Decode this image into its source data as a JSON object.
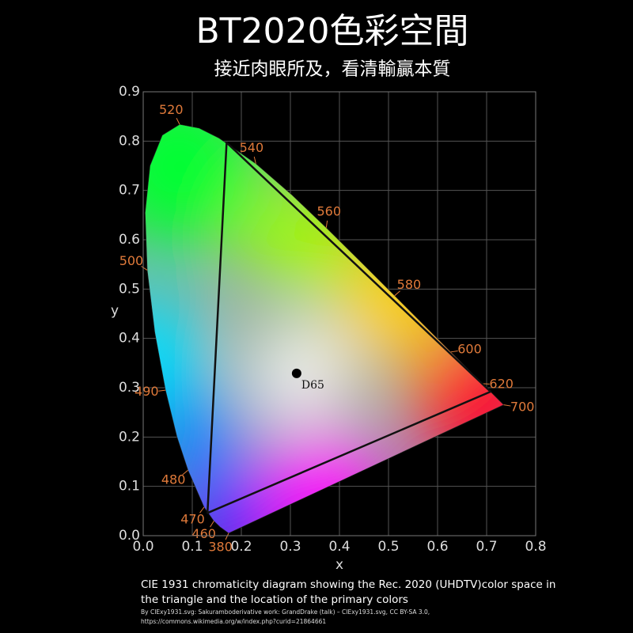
{
  "title": "BT2020色彩空間",
  "subtitle": "接近肉眼所及，看清輸贏本質",
  "chart_data": {
    "type": "chromaticity",
    "xlabel": "x",
    "ylabel": "y",
    "xlim": [
      0,
      0.8
    ],
    "ylim": [
      0,
      0.9
    ],
    "xticks": [
      {
        "value": 0,
        "label": "0.0"
      },
      {
        "value": 0.1,
        "label": "0.1"
      },
      {
        "value": 0.2,
        "label": "0.2"
      },
      {
        "value": 0.3,
        "label": "0.3"
      },
      {
        "value": 0.4,
        "label": "0.4"
      },
      {
        "value": 0.5,
        "label": "0.5"
      },
      {
        "value": 0.6,
        "label": "0.6"
      },
      {
        "value": 0.7,
        "label": "0.7"
      },
      {
        "value": 0.8,
        "label": "0.8"
      }
    ],
    "yticks": [
      {
        "value": 0,
        "label": "0.0"
      },
      {
        "value": 0.1,
        "label": "0.1"
      },
      {
        "value": 0.2,
        "label": "0.2"
      },
      {
        "value": 0.3,
        "label": "0.3"
      },
      {
        "value": 0.4,
        "label": "0.4"
      },
      {
        "value": 0.5,
        "label": "0.5"
      },
      {
        "value": 0.6,
        "label": "0.6"
      },
      {
        "value": 0.7,
        "label": "0.7"
      },
      {
        "value": 0.8,
        "label": "0.8"
      },
      {
        "value": 0.9,
        "label": "0.9"
      }
    ],
    "grid": true,
    "series": [
      {
        "kind": "locus",
        "color": "#e07a3a",
        "x": [
          0.1741,
          0.1566,
          0.144,
          0.1241,
          0.0913,
          0.0687,
          0.0454,
          0.0235,
          0.0082,
          0.0039,
          0.0139,
          0.0389,
          0.0743,
          0.1142,
          0.1547,
          0.2296,
          0.3016,
          0.3731,
          0.4441,
          0.5125,
          0.5752,
          0.627,
          0.6658,
          0.6915,
          0.719,
          0.7347
        ],
        "y": [
          0.005,
          0.0177,
          0.0297,
          0.0578,
          0.1327,
          0.2007,
          0.295,
          0.4127,
          0.5384,
          0.6548,
          0.7502,
          0.812,
          0.8338,
          0.8262,
          0.8059,
          0.7543,
          0.6923,
          0.6245,
          0.5547,
          0.4866,
          0.4242,
          0.3725,
          0.334,
          0.3083,
          0.2809,
          0.2653
        ],
        "labels": [
          380,
          null,
          460,
          470,
          480,
          null,
          490,
          null,
          500,
          null,
          null,
          null,
          520,
          null,
          null,
          540,
          null,
          560,
          null,
          580,
          null,
          600,
          null,
          620,
          null,
          700
        ]
      },
      {
        "kind": "gamut",
        "color": "#111111",
        "x": [
          0.708,
          0.17,
          0.131
        ],
        "y": [
          0.292,
          0.797,
          0.046
        ]
      },
      {
        "kind": "point",
        "color": "#000000",
        "x": [
          0.3127
        ],
        "y": [
          0.329
        ],
        "labels": [
          "D65"
        ]
      }
    ]
  },
  "caption": [
    "CIE 1931 chromaticity diagram showing the Rec. 2020 (UHDTV)color space in",
    "the triangle and the location of the primary colors"
  ],
  "credit": [
    "By CIExy1931.svg: Sakuramboderivative work: GrandDrake (talk) – CIExy1931.svg, CC BY-SA 3.0,",
    "https://commons.wikimedia.org/w/index.php?curid=21864661"
  ]
}
